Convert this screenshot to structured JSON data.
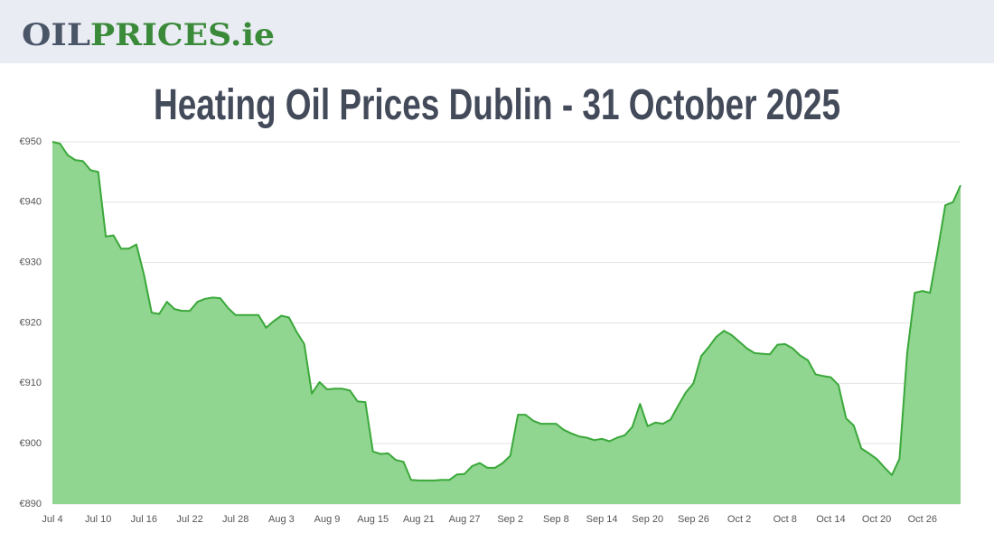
{
  "header": {
    "logo": {
      "part1": "OIL",
      "part2": "PRICES.ie"
    }
  },
  "chart_data": {
    "type": "area",
    "title": "Heating Oil Prices Dublin - 31 October 2025",
    "categories": [
      "Jul 4",
      null,
      null,
      null,
      null,
      null,
      "Jul 10",
      null,
      null,
      null,
      null,
      null,
      "Jul 16",
      null,
      null,
      null,
      null,
      null,
      "Jul 22",
      null,
      null,
      null,
      null,
      null,
      "Jul 28",
      null,
      null,
      null,
      null,
      null,
      "Aug 3",
      null,
      null,
      null,
      null,
      null,
      "Aug 9",
      null,
      null,
      null,
      null,
      null,
      "Aug 15",
      null,
      null,
      null,
      null,
      null,
      "Aug 21",
      null,
      null,
      null,
      null,
      null,
      "Aug 27",
      null,
      null,
      null,
      null,
      null,
      "Sep 2",
      null,
      null,
      null,
      null,
      null,
      "Sep 8",
      null,
      null,
      null,
      null,
      null,
      "Sep 14",
      null,
      null,
      null,
      null,
      null,
      "Sep 20",
      null,
      null,
      null,
      null,
      null,
      "Sep 26",
      null,
      null,
      null,
      null,
      null,
      "Oct 2",
      null,
      null,
      null,
      null,
      null,
      "Oct 8",
      null,
      null,
      null,
      null,
      null,
      "Oct 14",
      null,
      null,
      null,
      null,
      null,
      "Oct 20",
      null,
      null,
      null,
      null,
      null,
      "Oct 26",
      null,
      null,
      null,
      null,
      null
    ],
    "values": [
      950,
      949.7,
      947.8,
      947,
      946.8,
      945.3,
      945,
      934.3,
      934.5,
      932.3,
      932.3,
      933,
      928,
      921.7,
      921.5,
      923.5,
      922.3,
      922,
      922,
      923.5,
      924,
      924.2,
      924.1,
      922.5,
      921.3,
      921.3,
      921.3,
      921.3,
      919.2,
      920.3,
      921.2,
      920.9,
      918.5,
      916.5,
      908.3,
      910.2,
      909,
      909.1,
      909.1,
      908.8,
      907,
      906.9,
      898.7,
      898.3,
      898.4,
      897.3,
      897,
      894,
      893.9,
      893.9,
      893.9,
      894,
      894,
      894.9,
      895,
      896.3,
      896.8,
      896,
      896,
      896.8,
      898,
      904.8,
      904.8,
      903.8,
      903.3,
      903.3,
      903.3,
      902.3,
      901.7,
      901.2,
      901,
      900.6,
      900.8,
      900.4,
      901,
      901.4,
      902.8,
      906.6,
      902.9,
      903.5,
      903.3,
      904,
      906.3,
      908.5,
      910,
      914.5,
      916,
      917.7,
      918.7,
      918,
      916.9,
      915.8,
      915,
      914.9,
      914.8,
      916.4,
      916.5,
      915.8,
      914.6,
      913.8,
      911.5,
      911.2,
      911,
      909.7,
      904.2,
      903,
      899.2,
      898.4,
      897.5,
      896.1,
      894.8,
      897.5,
      915,
      925,
      925.3,
      925,
      932,
      939.5,
      940,
      942.8
    ],
    "color": "#3aa83a",
    "fill": "#90d590",
    "ylim": [
      890,
      950
    ],
    "yticks": [
      {
        "value": 890,
        "label": "€890"
      },
      {
        "value": 900,
        "label": "€900"
      },
      {
        "value": 910,
        "label": "€910"
      },
      {
        "value": 920,
        "label": "€920"
      },
      {
        "value": 930,
        "label": "€930"
      },
      {
        "value": 940,
        "label": "€940"
      },
      {
        "value": 950,
        "label": "€950"
      }
    ],
    "grid": true
  }
}
